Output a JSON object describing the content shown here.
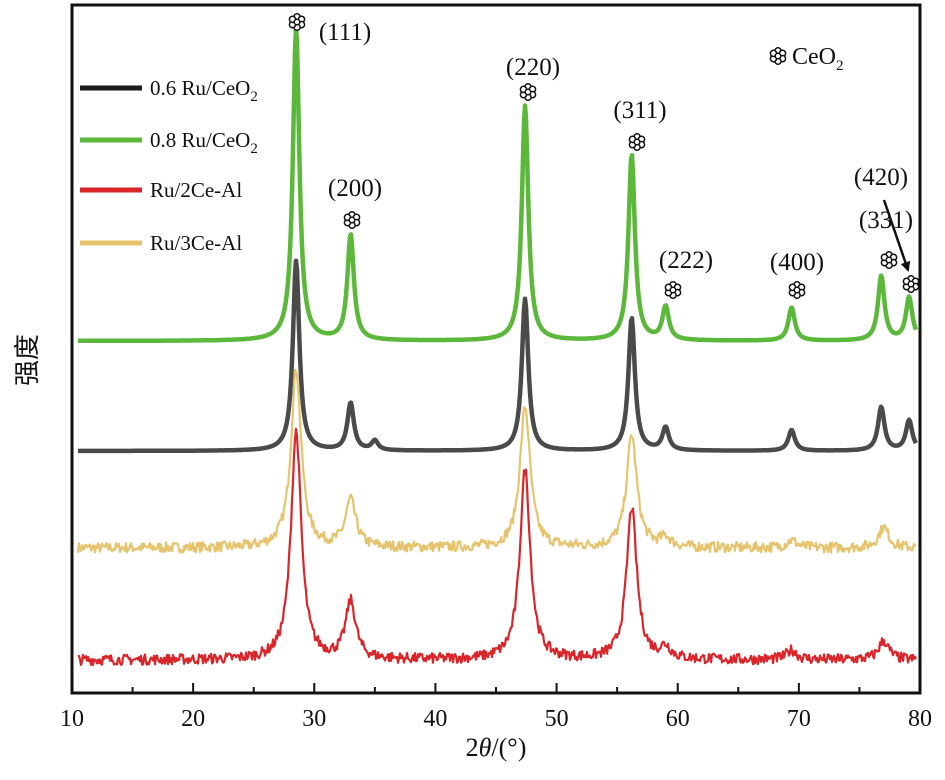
{
  "chart_data": {
    "type": "line",
    "xlabel_prefix": "2",
    "xlabel_symbol": "θ",
    "xlabel_unit": "/(°)",
    "ylabel": "强度",
    "xlim": [
      10,
      80
    ],
    "xticks": [
      10,
      20,
      30,
      40,
      50,
      60,
      70,
      80
    ],
    "y_ticks_shown": false,
    "grid": false,
    "legend_position": "top-left",
    "marker_legend": {
      "prefix": "CeO",
      "subscript": "2",
      "marker": "flower-icon"
    },
    "series": [
      {
        "name_parts": [
          "0.6 Ru/CeO",
          "2"
        ],
        "color": "#1a1a1a",
        "plot_color": "#4a4a4a",
        "baseline": 0.0,
        "noise": 0.0,
        "scale": 1.0,
        "peaks": [
          [
            28.5,
            1.0
          ],
          [
            33.0,
            0.25
          ],
          [
            35.0,
            0.05
          ],
          [
            47.4,
            0.8
          ],
          [
            56.2,
            0.7
          ],
          [
            59.0,
            0.12
          ],
          [
            69.4,
            0.11
          ],
          [
            76.8,
            0.23
          ],
          [
            79.1,
            0.16
          ]
        ]
      },
      {
        "name_parts": [
          "0.8 Ru/CeO",
          "2"
        ],
        "color": "#5cb83a",
        "plot_color": "#5cb83a",
        "baseline": 0.0,
        "noise": 0.0,
        "scale": 1.0,
        "peaks": [
          [
            28.5,
            1.6
          ],
          [
            33.0,
            0.54
          ],
          [
            47.4,
            1.2
          ],
          [
            56.2,
            0.95
          ],
          [
            59.0,
            0.17
          ],
          [
            69.4,
            0.17
          ],
          [
            76.8,
            0.33
          ],
          [
            79.1,
            0.22
          ]
        ]
      },
      {
        "name_parts": [
          "Ru/2Ce-Al"
        ],
        "color": "#d9262b",
        "plot_color": "#d9262b",
        "baseline": 0.0,
        "noise": 0.025,
        "scale": 1.0,
        "peaks": [
          [
            28.5,
            1.2
          ],
          [
            33.0,
            0.3
          ],
          [
            47.4,
            1.0
          ],
          [
            56.2,
            0.8
          ],
          [
            59.0,
            0.06
          ],
          [
            69.4,
            0.05
          ],
          [
            77.0,
            0.1
          ]
        ]
      },
      {
        "name_parts": [
          "Ru/3Ce-Al"
        ],
        "color": "#e6c46e",
        "plot_color": "#e6c46e",
        "baseline": 0.0,
        "noise": 0.025,
        "scale": 1.0,
        "peaks": [
          [
            28.5,
            0.95
          ],
          [
            33.0,
            0.25
          ],
          [
            47.4,
            0.75
          ],
          [
            56.2,
            0.6
          ],
          [
            59.0,
            0.05
          ],
          [
            69.4,
            0.04
          ],
          [
            77.0,
            0.11
          ]
        ]
      }
    ],
    "peak_labels": [
      {
        "hkl": "(111)",
        "x": 28.5
      },
      {
        "hkl": "(200)",
        "x": 33.0
      },
      {
        "hkl": "(220)",
        "x": 47.4
      },
      {
        "hkl": "(311)",
        "x": 56.2
      },
      {
        "hkl": "(222)",
        "x": 59.0
      },
      {
        "hkl": "(400)",
        "x": 69.4
      },
      {
        "hkl": "(331)",
        "x": 76.8
      },
      {
        "hkl": "(420)",
        "x": 79.1
      }
    ]
  }
}
